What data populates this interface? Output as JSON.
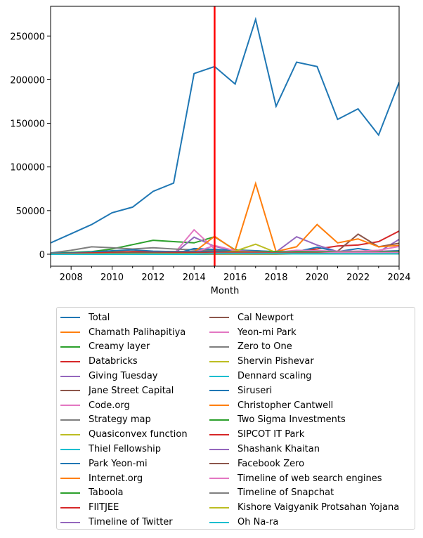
{
  "chart_data": {
    "type": "line",
    "title": "",
    "xlabel": "Month",
    "ylabel": "",
    "xlim": [
      2007,
      2024
    ],
    "ylim": [
      -13700,
      284000
    ],
    "grid": false,
    "legend_position": "below",
    "x_ticks": [
      "2008",
      "2010",
      "2012",
      "2014",
      "2016",
      "2018",
      "2020",
      "2022",
      "2024"
    ],
    "y_ticks": [
      "0",
      "50000",
      "100000",
      "150000",
      "200000",
      "250000"
    ],
    "annotations": [
      {
        "type": "vline",
        "x": 2015,
        "color": "#ff0000"
      }
    ],
    "x": [
      2007,
      2008,
      2009,
      2010,
      2011,
      2012,
      2013,
      2014,
      2015,
      2016,
      2017,
      2018,
      2019,
      2020,
      2021,
      2022,
      2023,
      2024
    ],
    "series": [
      {
        "name": "Total",
        "color": "#1f77b4",
        "values": [
          13000,
          23500,
          34000,
          47500,
          54000,
          72000,
          81500,
          207000,
          215000,
          195000,
          269000,
          169500,
          220000,
          215000,
          154500,
          166500,
          136500,
          197000
        ]
      },
      {
        "name": "Chamath Palihapitiya",
        "color": "#ff7f0e",
        "values": [
          0,
          0,
          0,
          0,
          0,
          0,
          0,
          0,
          0,
          0,
          0,
          0,
          500,
          1000,
          1500,
          2000,
          1500,
          2000
        ]
      },
      {
        "name": "Creamy layer",
        "color": "#2ca02c",
        "values": [
          1500,
          2000,
          3000,
          6000,
          11000,
          16000,
          14500,
          13000,
          20000,
          5000,
          4000,
          2500,
          2500,
          2000,
          2000,
          2000,
          2000,
          2500
        ]
      },
      {
        "name": "Databricks",
        "color": "#d62728",
        "values": [
          0,
          0,
          0,
          0,
          0,
          0,
          0,
          0,
          500,
          1000,
          1500,
          2000,
          3500,
          6000,
          9500,
          10500,
          14500,
          26500
        ]
      },
      {
        "name": "Giving Tuesday",
        "color": "#9467bd",
        "values": [
          0,
          0,
          0,
          0,
          0,
          0,
          0,
          19500,
          9000,
          4000,
          3000,
          2500,
          20000,
          10500,
          3000,
          2500,
          2500,
          17000
        ]
      },
      {
        "name": "Jane Street Capital",
        "color": "#8c564b",
        "values": [
          0,
          0,
          0,
          0,
          0,
          0,
          500,
          1000,
          1000,
          1500,
          1500,
          1500,
          2000,
          2500,
          3500,
          23000,
          8500,
          12500
        ]
      },
      {
        "name": "Code.org",
        "color": "#e377c2",
        "values": [
          0,
          0,
          0,
          0,
          0,
          0,
          0,
          28000,
          6000,
          3500,
          2500,
          2000,
          2500,
          3000,
          3000,
          3500,
          3500,
          4000
        ]
      },
      {
        "name": "Strategy map",
        "color": "#7f7f7f",
        "values": [
          1500,
          4500,
          8500,
          7500,
          6000,
          7500,
          6000,
          5000,
          4500,
          3500,
          3000,
          2500,
          2500,
          2500,
          2000,
          2000,
          1500,
          1500
        ]
      },
      {
        "name": "Quasiconvex function",
        "color": "#bcbd22",
        "values": [
          200,
          300,
          400,
          500,
          600,
          700,
          700,
          800,
          900,
          900,
          900,
          900,
          1000,
          1000,
          900,
          900,
          800,
          800
        ]
      },
      {
        "name": "Thiel Fellowship",
        "color": "#17becf",
        "values": [
          0,
          0,
          0,
          0,
          500,
          1500,
          1500,
          1500,
          1500,
          1500,
          1500,
          1500,
          1500,
          1500,
          1500,
          1500,
          1500,
          1500
        ]
      },
      {
        "name": "Park Yeon-mi",
        "color": "#1f77b4",
        "values": [
          0,
          0,
          0,
          0,
          0,
          0,
          0,
          6500,
          5500,
          4500,
          4000,
          3000,
          3000,
          8000,
          3000,
          6500,
          3000,
          4000
        ]
      },
      {
        "name": "Internet.org",
        "color": "#ff7f0e",
        "values": [
          0,
          0,
          0,
          0,
          0,
          0,
          0,
          2500,
          20500,
          4500,
          81000,
          3000,
          8500,
          34000,
          13000,
          17500,
          8500,
          10000
        ]
      },
      {
        "name": "Taboola",
        "color": "#2ca02c",
        "values": [
          500,
          1000,
          1500,
          2500,
          3000,
          3000,
          3000,
          3000,
          3500,
          3000,
          3000,
          3000,
          3000,
          3000,
          3000,
          3000,
          3000,
          3000
        ]
      },
      {
        "name": "FIITJEE",
        "color": "#d62728",
        "values": [
          500,
          1000,
          1500,
          2000,
          3000,
          3000,
          3000,
          3000,
          3000,
          3000,
          2500,
          2500,
          2500,
          2500,
          2500,
          2500,
          2500,
          3000
        ]
      },
      {
        "name": "Timeline of Twitter",
        "color": "#9467bd",
        "values": [
          0,
          0,
          0,
          500,
          1000,
          1000,
          1000,
          1000,
          1000,
          1000,
          1000,
          1000,
          1000,
          1000,
          1000,
          1000,
          1000,
          1000
        ]
      },
      {
        "name": "Cal Newport",
        "color": "#8c564b",
        "values": [
          500,
          800,
          1000,
          1500,
          1500,
          1500,
          1500,
          1500,
          1500,
          1500,
          1500,
          1500,
          1500,
          1500,
          1500,
          1500,
          1500,
          1500
        ]
      },
      {
        "name": "Yeon-mi Park",
        "color": "#e377c2",
        "values": [
          0,
          0,
          0,
          0,
          0,
          0,
          0,
          2000,
          10000,
          4000,
          3000,
          2500,
          4500,
          4000,
          3500,
          3500,
          4500,
          9000
        ]
      },
      {
        "name": "Zero to One",
        "color": "#7f7f7f",
        "values": [
          0,
          0,
          0,
          0,
          0,
          0,
          0,
          2000,
          3500,
          2500,
          2000,
          1500,
          1500,
          1500,
          1000,
          1000,
          1000,
          1000
        ]
      },
      {
        "name": "Shervin Pishevar",
        "color": "#bcbd22",
        "values": [
          0,
          0,
          0,
          0,
          500,
          1000,
          1500,
          1500,
          2000,
          3500,
          11500,
          2000,
          1500,
          1500,
          1000,
          1000,
          1000,
          1000
        ]
      },
      {
        "name": "Dennard scaling",
        "color": "#17becf",
        "values": [
          300,
          400,
          500,
          600,
          700,
          800,
          800,
          900,
          1000,
          1000,
          1000,
          1000,
          1000,
          1000,
          1000,
          1000,
          1000,
          1000
        ]
      },
      {
        "name": "Siruseri",
        "color": "#1f77b4",
        "values": [
          1000,
          1500,
          2500,
          4000,
          5000,
          3500,
          3000,
          3000,
          3000,
          2500,
          2500,
          2000,
          2000,
          2000,
          2000,
          2000,
          2000,
          2000
        ]
      },
      {
        "name": "Christopher Cantwell",
        "color": "#ff7f0e",
        "values": [
          0,
          0,
          0,
          0,
          0,
          0,
          0,
          500,
          1500,
          3000,
          2500,
          2000,
          1500,
          1500,
          1000,
          1000,
          1000,
          1000
        ]
      },
      {
        "name": "Two Sigma Investments",
        "color": "#2ca02c",
        "values": [
          0,
          0,
          500,
          1000,
          1500,
          1500,
          1500,
          2000,
          2000,
          2500,
          2500,
          2500,
          2500,
          2500,
          2500,
          2500,
          2500,
          3000
        ]
      },
      {
        "name": "SIPCOT IT Park",
        "color": "#d62728",
        "values": [
          500,
          1000,
          1500,
          2000,
          2000,
          2000,
          2000,
          2000,
          2000,
          2000,
          2000,
          1500,
          1500,
          1500,
          1500,
          1500,
          1500,
          1500
        ]
      },
      {
        "name": "Shashank Khaitan",
        "color": "#9467bd",
        "values": [
          0,
          0,
          0,
          0,
          0,
          0,
          0,
          500,
          1000,
          1000,
          1000,
          1000,
          1000,
          1000,
          1000,
          1000,
          1000,
          1000
        ]
      },
      {
        "name": "Facebook Zero",
        "color": "#8c564b",
        "values": [
          0,
          0,
          0,
          1000,
          2000,
          1500,
          1000,
          1000,
          1000,
          1000,
          500,
          500,
          500,
          500,
          500,
          500,
          500,
          500
        ]
      },
      {
        "name": "Timeline of web search engines",
        "color": "#e377c2",
        "values": [
          0,
          0,
          0,
          0,
          0,
          0,
          0,
          500,
          1000,
          1000,
          1000,
          1000,
          1000,
          1000,
          2000,
          2000,
          2000,
          2000
        ]
      },
      {
        "name": "Timeline of Snapchat",
        "color": "#7f7f7f",
        "values": [
          0,
          0,
          0,
          0,
          0,
          0,
          0,
          500,
          1000,
          1000,
          1000,
          1000,
          1000,
          1000,
          500,
          500,
          500,
          500
        ]
      },
      {
        "name": "Kishore Vaigyanik Protsahan Yojana",
        "color": "#bcbd22",
        "values": [
          200,
          300,
          400,
          500,
          500,
          500,
          500,
          500,
          500,
          500,
          500,
          500,
          500,
          500,
          500,
          500,
          500,
          500
        ]
      },
      {
        "name": "Oh Na-ra",
        "color": "#17becf",
        "values": [
          0,
          0,
          0,
          0,
          0,
          0,
          0,
          0,
          500,
          500,
          500,
          500,
          500,
          500,
          500,
          500,
          500,
          500
        ]
      }
    ]
  }
}
